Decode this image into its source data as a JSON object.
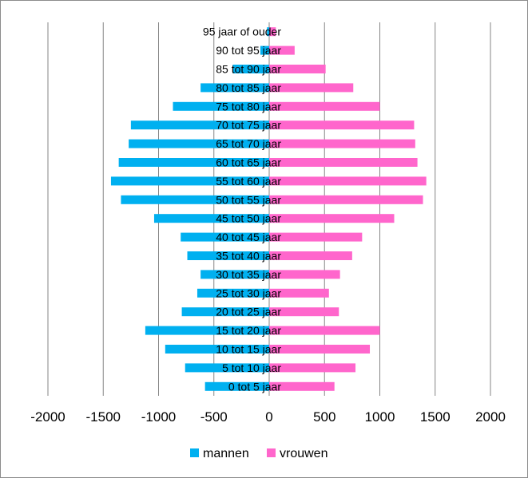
{
  "chart_data": {
    "type": "bar",
    "orientation": "horizontal",
    "categories": [
      "0 tot 5 jaar",
      "5 tot 10 jaar",
      "10 tot 15 jaar",
      "15 tot 20 jaar",
      "20 tot 25 jaar",
      "25 tot 30 jaar",
      "30 tot 35 jaar",
      "35 tot 40 jaar",
      "40 tot 45 jaar",
      "45 tot 50 jaar",
      "50 tot 55 jaar",
      "55 tot 60 jaar",
      "60 tot 65 jaar",
      "65 tot 70 jaar",
      "70 tot 75 jaar",
      "75 tot 80 jaar",
      "80 tot 85 jaar",
      "85 tot 90 jaar",
      "90 tot 95 jaar",
      "95 jaar of ouder"
    ],
    "series": [
      {
        "name": "mannen",
        "color": "#00b0f0",
        "values": [
          -580,
          -760,
          -940,
          -1120,
          -790,
          -650,
          -620,
          -740,
          -800,
          -1040,
          -1340,
          -1430,
          -1360,
          -1270,
          -1250,
          -870,
          -620,
          -330,
          -80,
          -20
        ]
      },
      {
        "name": "vrouwen",
        "color": "#ff66cc",
        "values": [
          590,
          780,
          910,
          1000,
          630,
          540,
          640,
          750,
          840,
          1130,
          1390,
          1420,
          1340,
          1320,
          1310,
          1000,
          760,
          510,
          230,
          60
        ]
      }
    ],
    "xlim": [
      -2000,
      2000
    ],
    "xticks": [
      "-2000",
      "-1500",
      "-1000",
      "-500",
      "0",
      "500",
      "1000",
      "1500",
      "2000"
    ],
    "grid": "vertical",
    "legend_position": "bottom",
    "title": "",
    "xlabel": "",
    "ylabel": ""
  }
}
